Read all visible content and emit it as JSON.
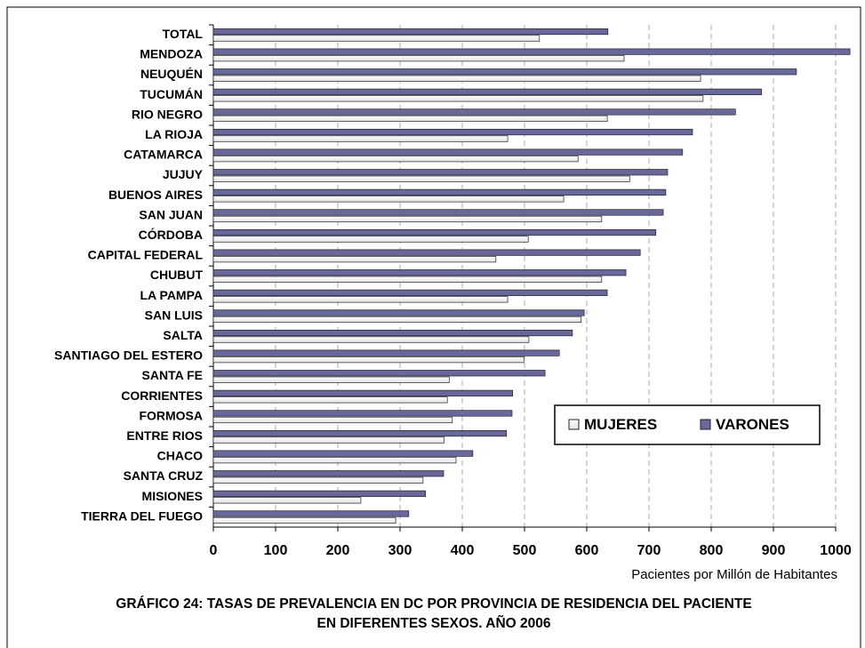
{
  "chart_data": {
    "type": "hbar",
    "title": "GRÁFICO 24:  TASAS DE PREVALENCIA  EN  DC POR PROVINCIA DE RESIDENCIA DEL PACIENTE",
    "subtitle": "EN DIFERENTES SEXOS.  AÑO 2006",
    "x_label": "Pacientes por Millón de Habitantes",
    "categories": [
      "TOTAL",
      "MENDOZA",
      "NEUQUÉN",
      "TUCUMÁN",
      "RIO NEGRO",
      "LA RIOJA",
      "CATAMARCA",
      "JUJUY",
      "BUENOS AIRES",
      "SAN JUAN",
      "CÓRDOBA",
      "CAPITAL FEDERAL",
      "CHUBUT",
      "LA PAMPA",
      "SAN LUIS",
      "SALTA",
      "SANTIAGO DEL ESTERO",
      "SANTA FE",
      "CORRIENTES",
      "FORMOSA",
      "ENTRE RIOS",
      "CHACO",
      "SANTA CRUZ",
      "MISIONES",
      "TIERRA  DEL FUEGO"
    ],
    "series": [
      {
        "name": "MUJERES",
        "color": "#e2e2e2",
        "values": [
          524,
          660,
          783,
          787,
          633,
          473,
          586,
          669,
          563,
          624,
          506,
          454,
          624,
          473,
          591,
          507,
          499,
          379,
          376,
          384,
          371,
          390,
          337,
          237,
          293
        ]
      },
      {
        "name": "VARONES",
        "color": "#68689c",
        "values": [
          634,
          1023,
          937,
          881,
          839,
          770,
          754,
          730,
          727,
          723,
          711,
          686,
          663,
          633,
          596,
          577,
          556,
          533,
          481,
          480,
          471,
          417,
          370,
          341,
          314
        ]
      }
    ],
    "xlim": [
      0,
      1000
    ],
    "xticks": [
      0,
      100,
      200,
      300,
      400,
      500,
      600,
      700,
      800,
      900,
      1000
    ],
    "grid": true,
    "legend": "lower right"
  }
}
